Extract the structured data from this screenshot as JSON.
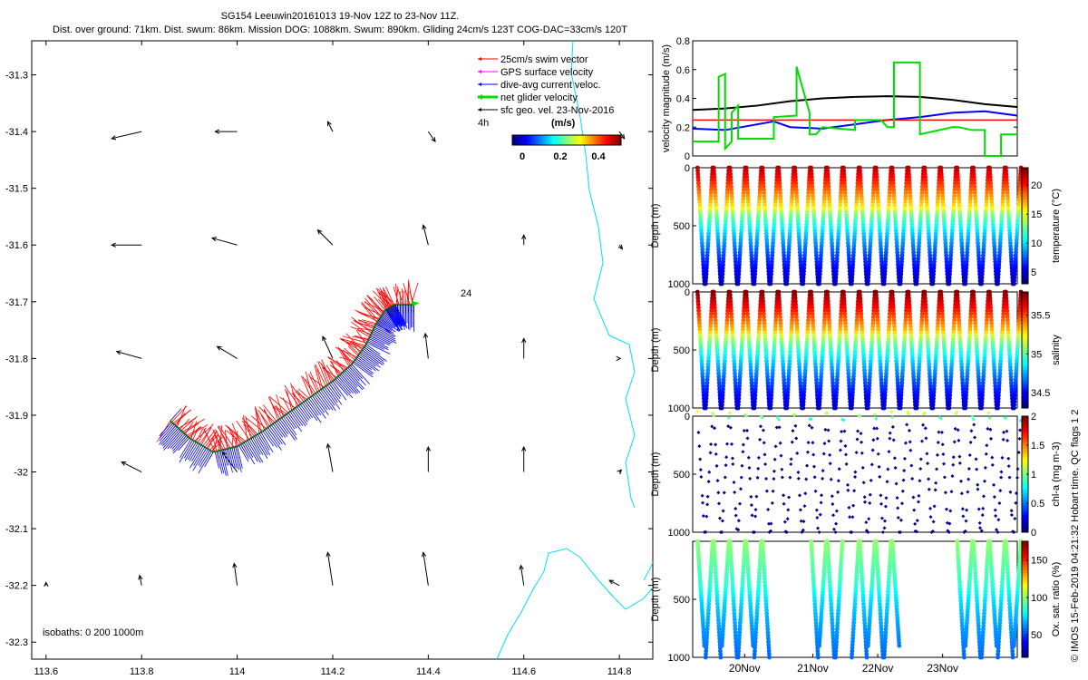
{
  "header": {
    "title_line1": "SG154 Leeuwin20161013 19-Nov 12Z to 23-Nov 11Z.",
    "title_line2": "Dist. over ground: 71km. Dist. swum: 86km. Mission DOG: 1088km. Swum: 890km. Gliding 24cm/s 123T COG-DAC=33cm/s 120T"
  },
  "footer": {
    "imos_credit": "© IMOS 15-Feb-2019 04:21:32 Hobart time. QC flags 1 2"
  },
  "colors": {
    "swim": "#ff0000",
    "gps": "#ff00ff",
    "dac": "#0000ff",
    "net": "#00dd00",
    "geo": "#000000",
    "coast": "#00e0f0",
    "ref_line": "#ff0000"
  },
  "chart_data": [
    {
      "type": "scatter",
      "name": "track-map",
      "xlim": [
        113.57,
        114.87
      ],
      "ylim": [
        -32.33,
        -31.24
      ],
      "xticks": [
        113.6,
        113.8,
        114,
        114.2,
        114.4,
        114.6,
        114.8
      ],
      "xtick_labels": [
        "113.6",
        "113.8",
        "114",
        "114.2",
        "114.4",
        "114.6",
        "114.8"
      ],
      "yticks": [
        -31.3,
        -31.4,
        -31.5,
        -31.6,
        -31.7,
        -31.8,
        -31.9,
        -32,
        -32.1,
        -32.2,
        -32.3
      ],
      "ytick_labels": [
        "-31.3",
        "-31.4",
        "-31.5",
        "-31.6",
        "-31.7",
        "-31.8",
        "-31.9",
        "-32",
        "-32.1",
        "-32.2",
        "-32.3"
      ],
      "legend": {
        "placement": "top-right",
        "entries": [
          "25cm/s swim vector",
          "GPS surface velocity",
          "dive-avg current veloc.",
          "net glider velocity",
          "sfc geo. vel. 23-Nov-2016"
        ],
        "scale_label": "4h",
        "colorbar_unit": "(m/s)",
        "colorbar_ticks": [
          "0",
          "0.2",
          "0.4"
        ],
        "colorbar_range": [
          0,
          0.55
        ]
      },
      "annotations": {
        "track_label": "24",
        "isobaths": "isobaths: 0   200  1000m"
      },
      "track": [
        [
          113.86,
          -31.91
        ],
        [
          113.9,
          -31.94
        ],
        [
          113.95,
          -31.965
        ],
        [
          114.0,
          -31.955
        ],
        [
          114.05,
          -31.93
        ],
        [
          114.1,
          -31.9
        ],
        [
          114.15,
          -31.87
        ],
        [
          114.2,
          -31.84
        ],
        [
          114.24,
          -31.81
        ],
        [
          114.27,
          -31.775
        ],
        [
          114.29,
          -31.74
        ],
        [
          114.31,
          -31.715
        ],
        [
          114.33,
          -31.705
        ],
        [
          114.37,
          -31.705
        ]
      ],
      "geo_vectors": [
        {
          "lon": 113.8,
          "lat": -31.4,
          "u": -0.3,
          "v": -0.07
        },
        {
          "lon": 114.0,
          "lat": -31.4,
          "u": -0.22,
          "v": 0.0
        },
        {
          "lon": 114.2,
          "lat": -31.4,
          "u": -0.05,
          "v": 0.1
        },
        {
          "lon": 114.4,
          "lat": -31.4,
          "u": 0.07,
          "v": -0.1
        },
        {
          "lon": 114.8,
          "lat": -31.4,
          "u": 0.05,
          "v": -0.07
        },
        {
          "lon": 113.8,
          "lat": -31.6,
          "u": -0.3,
          "v": 0.0
        },
        {
          "lon": 114.0,
          "lat": -31.6,
          "u": -0.25,
          "v": 0.07
        },
        {
          "lon": 114.2,
          "lat": -31.6,
          "u": -0.15,
          "v": 0.15
        },
        {
          "lon": 114.4,
          "lat": -31.6,
          "u": -0.05,
          "v": 0.2
        },
        {
          "lon": 114.6,
          "lat": -31.6,
          "u": 0.0,
          "v": 0.1
        },
        {
          "lon": 114.8,
          "lat": -31.6,
          "u": 0.03,
          "v": -0.04
        },
        {
          "lon": 113.8,
          "lat": -31.8,
          "u": -0.25,
          "v": 0.07
        },
        {
          "lon": 114.0,
          "lat": -31.8,
          "u": -0.2,
          "v": 0.12
        },
        {
          "lon": 114.2,
          "lat": -31.8,
          "u": -0.1,
          "v": 0.22
        },
        {
          "lon": 114.4,
          "lat": -31.8,
          "u": -0.03,
          "v": 0.25
        },
        {
          "lon": 114.6,
          "lat": -31.8,
          "u": 0.0,
          "v": 0.2
        },
        {
          "lon": 114.8,
          "lat": -31.8,
          "u": 0.01,
          "v": 0.0
        },
        {
          "lon": 113.8,
          "lat": -32.0,
          "u": -0.2,
          "v": 0.1
        },
        {
          "lon": 114.0,
          "lat": -32.0,
          "u": -0.15,
          "v": 0.2
        },
        {
          "lon": 114.2,
          "lat": -32.0,
          "u": -0.05,
          "v": 0.28
        },
        {
          "lon": 114.4,
          "lat": -32.0,
          "u": 0.0,
          "v": 0.25
        },
        {
          "lon": 114.6,
          "lat": -32.0,
          "u": 0.0,
          "v": 0.25
        },
        {
          "lon": 114.8,
          "lat": -32.0,
          "u": 0.02,
          "v": 0.02
        },
        {
          "lon": 113.6,
          "lat": -32.2,
          "u": 0.0,
          "v": 0.03
        },
        {
          "lon": 113.8,
          "lat": -32.2,
          "u": -0.02,
          "v": 0.1
        },
        {
          "lon": 114.0,
          "lat": -32.2,
          "u": -0.03,
          "v": 0.22
        },
        {
          "lon": 114.2,
          "lat": -32.2,
          "u": -0.05,
          "v": 0.33
        },
        {
          "lon": 114.4,
          "lat": -32.2,
          "u": -0.05,
          "v": 0.33
        },
        {
          "lon": 114.6,
          "lat": -32.2,
          "u": -0.03,
          "v": 0.2
        },
        {
          "lon": 114.8,
          "lat": -32.2,
          "u": -0.1,
          "v": 0.05
        }
      ]
    },
    {
      "type": "line",
      "name": "velocity-magnitude",
      "ylabel": "velocity magnitude (m/s)",
      "ylim": [
        0,
        0.8
      ],
      "yticks": [
        0,
        0.2,
        0.4,
        0.6,
        0.8
      ],
      "ytick_labels": [
        "0",
        "0.2",
        "0.4",
        "0.6",
        "0.8"
      ],
      "xlim": [
        0,
        1
      ],
      "series": [
        {
          "name": "geo",
          "color": "#000000",
          "x": [
            0,
            0.1,
            0.2,
            0.3,
            0.4,
            0.5,
            0.6,
            0.7,
            0.8,
            0.9,
            1.0
          ],
          "y": [
            0.32,
            0.33,
            0.35,
            0.38,
            0.4,
            0.41,
            0.415,
            0.41,
            0.39,
            0.36,
            0.34
          ]
        },
        {
          "name": "dive-avg",
          "color": "#0000ff",
          "x": [
            0,
            0.1,
            0.2,
            0.25,
            0.3,
            0.4,
            0.5,
            0.6,
            0.7,
            0.8,
            0.9,
            1.0
          ],
          "y": [
            0.19,
            0.18,
            0.22,
            0.24,
            0.2,
            0.19,
            0.22,
            0.25,
            0.27,
            0.3,
            0.31,
            0.28
          ]
        },
        {
          "name": "swim",
          "color": "#ff0000",
          "x": [
            0,
            1
          ],
          "y": [
            0.25,
            0.25
          ]
        },
        {
          "name": "net",
          "color": "#00dd00",
          "x": [
            0,
            0.08,
            0.08,
            0.1,
            0.1,
            0.12,
            0.12,
            0.14,
            0.14,
            0.25,
            0.25,
            0.32,
            0.32,
            0.36,
            0.36,
            0.38,
            0.4,
            0.5,
            0.5,
            0.58,
            0.6,
            0.62,
            0.62,
            0.7,
            0.7,
            0.8,
            0.8,
            0.82,
            0.82,
            0.86,
            0.86,
            0.9,
            0.9,
            0.95,
            0.95,
            1.0
          ],
          "y": [
            0.1,
            0.1,
            0.55,
            0.57,
            0.05,
            0.1,
            0.3,
            0.35,
            0.12,
            0.12,
            0.27,
            0.28,
            0.62,
            0.3,
            0.15,
            0.15,
            0.2,
            0.18,
            0.25,
            0.25,
            0.2,
            0.2,
            0.65,
            0.65,
            0.15,
            0.2,
            0.2,
            0.2,
            0.2,
            0.18,
            0.18,
            0.18,
            0.0,
            0.0,
            0.15,
            0.15
          ]
        }
      ]
    },
    {
      "type": "scatter",
      "name": "temperature-section",
      "ylabel": "Depth (m)",
      "ylim": [
        1000,
        0
      ],
      "yticks": [
        0,
        500,
        1000
      ],
      "ytick_labels": [
        "0",
        "500",
        "1000"
      ],
      "colorbar_label": "temperature (°C)",
      "colorbar_ticks": [
        5,
        10,
        15,
        20
      ],
      "colorbar_tick_labels": [
        "5",
        "10",
        "15",
        "20"
      ],
      "crange": [
        3,
        23
      ],
      "profile_max_depth": 1000,
      "n_profiles": 40,
      "profile_mode": "full",
      "surface_value": 22,
      "bottom_value": 4,
      "thermocline_depth": 350
    },
    {
      "type": "scatter",
      "name": "salinity-section",
      "ylabel": "Depth (m)",
      "ylim": [
        1000,
        0
      ],
      "yticks": [
        0,
        500,
        1000
      ],
      "ytick_labels": [
        "0",
        "500",
        "1000"
      ],
      "colorbar_label": "salinity",
      "colorbar_ticks": [
        34.5,
        35,
        35.5
      ],
      "colorbar_tick_labels": [
        "34.5",
        "35",
        "35.5"
      ],
      "crange": [
        34.3,
        35.8
      ],
      "profile_max_depth": 1000,
      "n_profiles": 40,
      "profile_mode": "full",
      "surface_value": 35.8,
      "bottom_value": 34.4,
      "thermocline_depth": 350
    },
    {
      "type": "scatter",
      "name": "chlorophyll-section",
      "ylabel": "Depth (m)",
      "ylim": [
        1000,
        0
      ],
      "yticks": [
        0,
        500,
        1000
      ],
      "ytick_labels": [
        "0",
        "500",
        "1000"
      ],
      "colorbar_label": "chl-a (mg m-3)",
      "colorbar_ticks": [
        0,
        0.5,
        1,
        1.5,
        2
      ],
      "colorbar_tick_labels": [
        "0",
        "0.5",
        "1",
        "1.5",
        "2"
      ],
      "crange": [
        0,
        2
      ],
      "profile_max_depth": 1000,
      "n_profiles": 40,
      "profile_mode": "sparse",
      "surface_value": 1.0,
      "bottom_value": 0.02,
      "thermocline_depth": 60
    },
    {
      "type": "scatter",
      "name": "oxygen-section",
      "ylabel": "Depth (m)",
      "ylim": [
        1000,
        0
      ],
      "yticks": [
        500,
        1000
      ],
      "ytick_labels": [
        "500",
        "1000"
      ],
      "colorbar_label": "Ox. sat. ratio (%)",
      "colorbar_ticks": [
        50,
        100,
        150
      ],
      "colorbar_tick_labels": [
        "50",
        "100",
        "150"
      ],
      "crange": [
        20,
        175
      ],
      "profile_max_depth": 1000,
      "n_profiles": 40,
      "profile_mode": "gappy",
      "surface_value": 100,
      "bottom_value": 55,
      "thermocline_depth": 400,
      "xticks": [
        0.16,
        0.37,
        0.57,
        0.77
      ],
      "xtick_labels": [
        "20Nov",
        "21Nov",
        "22Nov",
        "23Nov"
      ]
    }
  ]
}
